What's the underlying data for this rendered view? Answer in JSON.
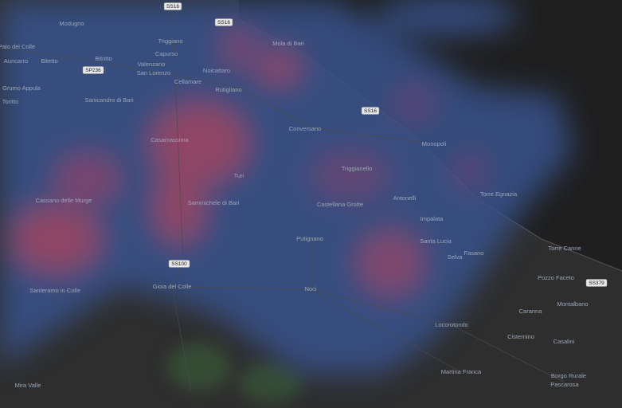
{
  "places": [
    "Modugno",
    "Triggiano",
    "Palo del Colle",
    "Capurso",
    "Mola di Bari",
    "Auncarro",
    "Bitetto",
    "Bitritto",
    "Valenzano",
    "San Lorenzo",
    "Noicattaro",
    "Cellamare",
    "Grumo Appula",
    "Rutigliano",
    "Toritto",
    "Sanicandro di Bari",
    "Conversano",
    "Casamassima",
    "Monopoli",
    "Triggianello",
    "Turi",
    "Torre Egnazia",
    "Antonelli",
    "Cassano delle Murge",
    "Sammichele di Bari",
    "Castellana Grotte",
    "Impalata",
    "Putignano",
    "Santa Lucia",
    "Torre Canne",
    "Fasano",
    "Selva",
    "Pozzo Faceto",
    "Gioia del Colle",
    "Noci",
    "Santeramo in Colle",
    "Montalbano",
    "Caranna",
    "Locorotondo",
    "Cisternino",
    "Casalini",
    "Martina Franca",
    "Borgo Rurale",
    "Pascarosa",
    "Mira Valle"
  ],
  "road_shields": [
    "SS16",
    "SS16",
    "SP236",
    "SS16",
    "SS100",
    "SS379"
  ]
}
